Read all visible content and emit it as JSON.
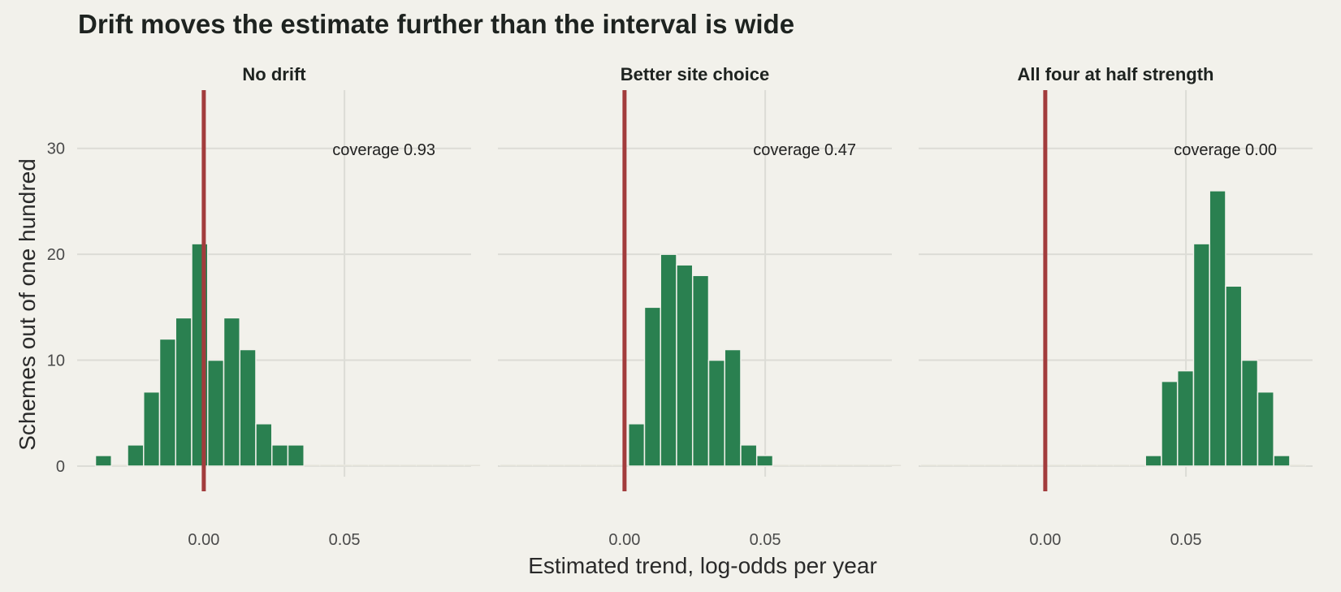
{
  "chart_data": {
    "type": "bar",
    "title": "Drift moves the estimate further than the interval is wide",
    "xlabel": "Estimated trend, log-odds per year",
    "ylabel": "Schemes out of one hundred",
    "xlim": [
      -0.045,
      0.095
    ],
    "ylim": [
      -1,
      35.5
    ],
    "x_ticks": [
      0.0,
      0.05
    ],
    "x_tick_labels": [
      "0.00",
      "0.05"
    ],
    "y_ticks": [
      0,
      10,
      20,
      30
    ],
    "y_tick_labels": [
      "0",
      "10",
      "20",
      "30"
    ],
    "grid": true,
    "bin_width": 0.0057,
    "reference_line": 0.0,
    "colors": {
      "bars": "#2a8050",
      "reference_line": "#a23c3c",
      "background": "#f2f1eb",
      "grid": "#dcdcd6"
    },
    "panels": [
      {
        "name": "No drift",
        "annotation": "coverage 0.93",
        "bins": [
          -0.0385,
          -0.0328,
          -0.0271,
          -0.0214,
          -0.0157,
          -0.01,
          -0.0043,
          0.0014,
          0.0071,
          0.0128,
          0.0185,
          0.0242,
          0.0299,
          0.0356,
          0.0413,
          0.047,
          0.0527,
          0.0584,
          0.0641,
          0.0698,
          0.0755,
          0.0812,
          0.0869,
          0.0926
        ],
        "counts": [
          1,
          0,
          2,
          7,
          12,
          14,
          21,
          10,
          14,
          11,
          4,
          2,
          2,
          0,
          0,
          0,
          0,
          0,
          0,
          0,
          0,
          0,
          0,
          0
        ]
      },
      {
        "name": "Better site choice",
        "annotation": "coverage 0.47",
        "bins": [
          -0.0442,
          -0.0385,
          -0.0328,
          -0.0271,
          -0.0214,
          -0.0157,
          -0.01,
          -0.0043,
          0.0014,
          0.0071,
          0.0128,
          0.0185,
          0.0242,
          0.0299,
          0.0356,
          0.0413,
          0.047,
          0.0527,
          0.0584,
          0.0641,
          0.0698,
          0.0755,
          0.0812,
          0.0869,
          0.0926
        ],
        "counts": [
          0,
          0,
          0,
          0,
          0,
          0,
          0,
          0,
          4,
          15,
          20,
          19,
          18,
          10,
          11,
          2,
          1,
          0,
          0,
          0,
          0,
          0,
          0,
          0,
          0
        ]
      },
      {
        "name": "All four at half strength",
        "annotation": "coverage 0.00",
        "bins": [
          -0.0442,
          -0.0385,
          -0.0328,
          -0.0271,
          -0.0214,
          -0.0157,
          -0.01,
          -0.0043,
          0.0014,
          0.0071,
          0.0128,
          0.0185,
          0.0242,
          0.0299,
          0.0356,
          0.0413,
          0.047,
          0.0527,
          0.0584,
          0.0641,
          0.0698,
          0.0755,
          0.0812,
          0.0869
        ],
        "counts": [
          0,
          0,
          0,
          0,
          0,
          0,
          0,
          0,
          0,
          0,
          0,
          0,
          0,
          0,
          1,
          8,
          9,
          21,
          26,
          17,
          10,
          7,
          1,
          0
        ]
      }
    ]
  }
}
